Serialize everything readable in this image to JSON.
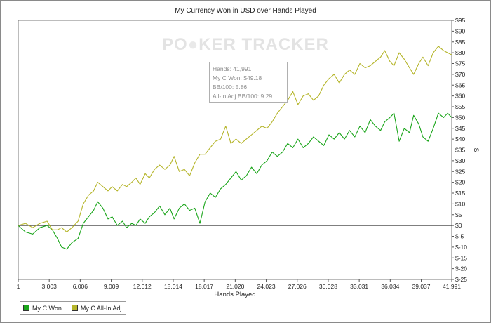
{
  "chart_data": {
    "type": "line",
    "title": "My Currency Won in USD over Hands Played",
    "xlabel": "Hands Played",
    "ylabel": "$",
    "xlim": [
      1,
      41991
    ],
    "ylim": [
      -25,
      95
    ],
    "x_ticks": [
      {
        "value": 1,
        "label": "1"
      },
      {
        "value": 3003,
        "label": "3,003"
      },
      {
        "value": 6006,
        "label": "6,006"
      },
      {
        "value": 9009,
        "label": "9,009"
      },
      {
        "value": 12012,
        "label": "12,012"
      },
      {
        "value": 15014,
        "label": "15,014"
      },
      {
        "value": 18017,
        "label": "18,017"
      },
      {
        "value": 21020,
        "label": "21,020"
      },
      {
        "value": 24023,
        "label": "24,023"
      },
      {
        "value": 27026,
        "label": "27,026"
      },
      {
        "value": 30028,
        "label": "30,028"
      },
      {
        "value": 33031,
        "label": "33,031"
      },
      {
        "value": 36034,
        "label": "36,034"
      },
      {
        "value": 39037,
        "label": "39,037"
      },
      {
        "value": 41991,
        "label": "41,991"
      }
    ],
    "y_ticks": [
      {
        "value": 95,
        "label": "$95"
      },
      {
        "value": 90,
        "label": "$90"
      },
      {
        "value": 85,
        "label": "$85"
      },
      {
        "value": 80,
        "label": "$80"
      },
      {
        "value": 75,
        "label": "$75"
      },
      {
        "value": 70,
        "label": "$70"
      },
      {
        "value": 65,
        "label": "$65"
      },
      {
        "value": 60,
        "label": "$60"
      },
      {
        "value": 55,
        "label": "$55"
      },
      {
        "value": 50,
        "label": "$50"
      },
      {
        "value": 45,
        "label": "$45"
      },
      {
        "value": 40,
        "label": "$40"
      },
      {
        "value": 35,
        "label": "$35"
      },
      {
        "value": 30,
        "label": "$30"
      },
      {
        "value": 25,
        "label": "$25"
      },
      {
        "value": 20,
        "label": "$20"
      },
      {
        "value": 15,
        "label": "$15"
      },
      {
        "value": 10,
        "label": "$10"
      },
      {
        "value": 5,
        "label": "$5"
      },
      {
        "value": 0,
        "label": "$0"
      },
      {
        "value": -5,
        "label": "$-5"
      },
      {
        "value": -10,
        "label": "$-10"
      },
      {
        "value": -15,
        "label": "$-15"
      },
      {
        "value": -20,
        "label": "$-20"
      },
      {
        "value": -25,
        "label": "$-25"
      }
    ],
    "grid": false,
    "zero_line": true,
    "legend_position": "bottom-left",
    "series": [
      {
        "name": "My C Won",
        "color": "#1aa51a",
        "x": [
          1,
          700,
          1400,
          2100,
          2800,
          3300,
          3800,
          4200,
          4700,
          5200,
          5800,
          6300,
          6800,
          7300,
          7700,
          8200,
          8700,
          9100,
          9600,
          10100,
          10500,
          11000,
          11400,
          11800,
          12300,
          12700,
          13200,
          13700,
          14200,
          14700,
          15100,
          15600,
          16100,
          16600,
          17100,
          17600,
          18100,
          18600,
          19100,
          19600,
          20100,
          20600,
          21100,
          21600,
          22100,
          22600,
          23100,
          23600,
          24100,
          24600,
          25100,
          25600,
          26100,
          26600,
          27100,
          27600,
          28100,
          28600,
          29100,
          29600,
          30100,
          30600,
          31100,
          31600,
          32100,
          32600,
          33100,
          33600,
          34100,
          34600,
          35100,
          35500,
          36000,
          36400,
          36900,
          37400,
          37900,
          38300,
          38800,
          39200,
          39700,
          40200,
          40700,
          41200,
          41600,
          41991
        ],
        "y": [
          0,
          -3,
          -4,
          -1,
          0,
          -2,
          -6,
          -10,
          -11,
          -8,
          -6,
          1,
          4,
          7,
          11,
          8,
          3,
          4,
          0,
          2,
          -1,
          1,
          0,
          3,
          1,
          4,
          6,
          9,
          5,
          8,
          3,
          8,
          10,
          7,
          8,
          1,
          11,
          15,
          13,
          17,
          19,
          22,
          25,
          21,
          23,
          27,
          24,
          28,
          30,
          34,
          32,
          34,
          38,
          36,
          40,
          36,
          38,
          41,
          39,
          37,
          42,
          40,
          43,
          40,
          44,
          41,
          46,
          43,
          49,
          46,
          44,
          48,
          50,
          52,
          39,
          45,
          43,
          51,
          47,
          41,
          39,
          45,
          52,
          50,
          52,
          50
        ]
      },
      {
        "name": "My C All-In Adj",
        "color": "#b5b52a",
        "x": [
          1,
          700,
          1400,
          2100,
          2800,
          3300,
          3800,
          4200,
          4700,
          5200,
          5800,
          6300,
          6800,
          7300,
          7700,
          8200,
          8700,
          9100,
          9600,
          10100,
          10500,
          11000,
          11400,
          11800,
          12300,
          12700,
          13200,
          13700,
          14200,
          14700,
          15100,
          15600,
          16100,
          16600,
          17100,
          17600,
          18100,
          18600,
          19100,
          19600,
          20100,
          20600,
          21100,
          21600,
          22100,
          22600,
          23100,
          23600,
          24100,
          24600,
          25100,
          25600,
          26100,
          26600,
          27100,
          27600,
          28100,
          28600,
          29100,
          29600,
          30100,
          30600,
          31100,
          31600,
          32100,
          32600,
          33100,
          33600,
          34100,
          34600,
          35100,
          35500,
          36000,
          36400,
          36900,
          37400,
          37900,
          38300,
          38800,
          39200,
          39700,
          40200,
          40700,
          41200,
          41600,
          41991
        ],
        "y": [
          0,
          1,
          -1,
          1,
          2,
          -2,
          -2,
          -1,
          -3,
          -1,
          2,
          10,
          14,
          16,
          20,
          18,
          16,
          18,
          16,
          19,
          18,
          20,
          22,
          19,
          24,
          22,
          26,
          28,
          26,
          28,
          32,
          25,
          26,
          23,
          29,
          33,
          33,
          36,
          39,
          40,
          46,
          38,
          40,
          38,
          40,
          42,
          44,
          46,
          45,
          48,
          52,
          55,
          58,
          62,
          56,
          60,
          61,
          58,
          60,
          65,
          68,
          70,
          66,
          70,
          72,
          70,
          75,
          73,
          74,
          76,
          78,
          81,
          76,
          74,
          80,
          77,
          73,
          70,
          75,
          78,
          74,
          80,
          83,
          81,
          80,
          79
        ]
      }
    ]
  },
  "watermark": {
    "part1": "PO",
    "part2": "KER",
    "part3": "TRACKER"
  },
  "tooltip": {
    "hands": "Hands: 41,991",
    "won": "My C Won: $49.18",
    "bb100": "BB/100: 5.86",
    "allin_bb100": "All-In Adj BB/100: 9.29"
  }
}
